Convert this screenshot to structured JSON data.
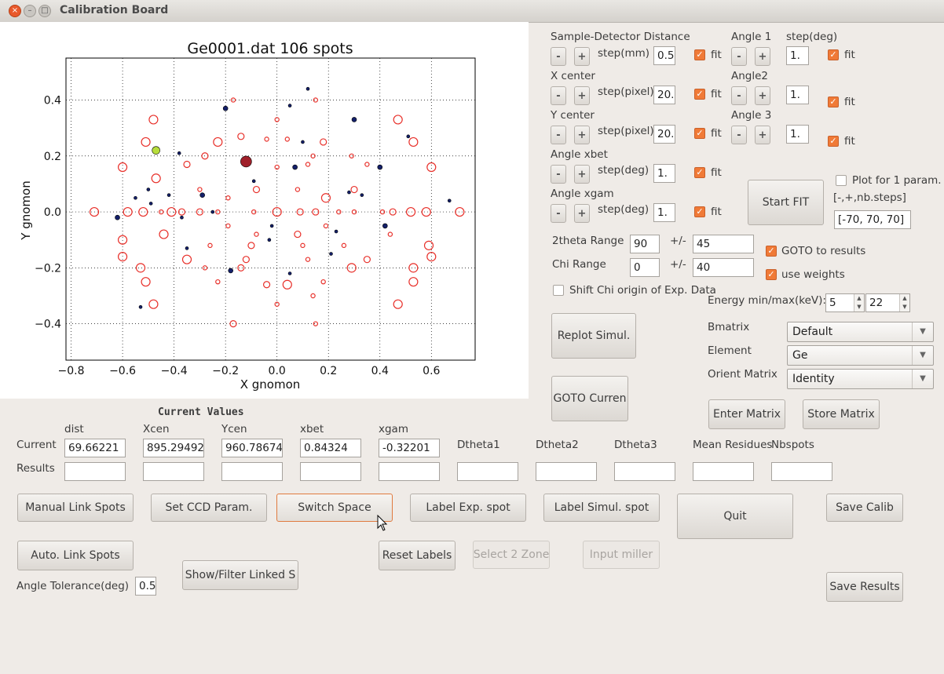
{
  "window": {
    "title": "Calibration Board"
  },
  "plot": {
    "title": "Ge0001.dat 106 spots",
    "xlabel": "X gnomon",
    "ylabel": "Y gnomon",
    "xticks": [
      "−0.8",
      "−0.6",
      "−0.4",
      "−0.2",
      "0.0",
      "0.2",
      "0.4",
      "0.6"
    ],
    "yticks": [
      "0.4",
      "0.2",
      "0.0",
      "−0.2",
      "−0.4"
    ]
  },
  "chart_data": {
    "type": "scatter",
    "title": "Ge0001.dat 106 spots",
    "xlabel": "X gnomon",
    "ylabel": "Y gnomon",
    "xlim": [
      -0.82,
      0.77
    ],
    "ylim": [
      -0.53,
      0.55
    ],
    "grid": true,
    "series": [
      {
        "marker": "open-circle",
        "color": "#e8302a",
        "points": [
          [
            -0.71,
            0.0
          ],
          [
            0.71,
            0.0
          ],
          [
            -0.48,
            0.33
          ],
          [
            0.47,
            0.33
          ],
          [
            -0.51,
            0.25
          ],
          [
            0.53,
            0.25
          ],
          [
            -0.48,
            -0.33
          ],
          [
            0.47,
            -0.33
          ],
          [
            -0.51,
            -0.25
          ],
          [
            0.53,
            -0.25
          ],
          [
            -0.17,
            0.4
          ],
          [
            0.15,
            0.4
          ],
          [
            -0.17,
            -0.4
          ],
          [
            0.15,
            -0.4
          ],
          [
            -0.23,
            0.25
          ],
          [
            0.18,
            0.25
          ],
          [
            -0.23,
            -0.25
          ],
          [
            0.18,
            -0.25
          ],
          [
            -0.28,
            0.2
          ],
          [
            0.29,
            0.2
          ],
          [
            -0.28,
            -0.2
          ],
          [
            0.29,
            -0.2
          ],
          [
            0.0,
            0.33
          ],
          [
            0.0,
            -0.33
          ],
          [
            -0.37,
            0.0
          ],
          [
            0.24,
            0.0
          ],
          [
            -0.23,
            0.0
          ],
          [
            0.15,
            0.0
          ],
          [
            0.0,
            0.0
          ],
          [
            -0.6,
            0.16
          ],
          [
            0.6,
            0.16
          ],
          [
            -0.6,
            -0.16
          ],
          [
            0.6,
            -0.16
          ],
          [
            -0.35,
            0.17
          ],
          [
            0.35,
            0.17
          ],
          [
            -0.35,
            -0.17
          ],
          [
            0.35,
            -0.17
          ],
          [
            -0.12,
            0.17
          ],
          [
            0.12,
            0.17
          ],
          [
            -0.12,
            -0.17
          ],
          [
            0.12,
            -0.17
          ],
          [
            -0.19,
            0.05
          ],
          [
            0.19,
            0.05
          ],
          [
            -0.19,
            -0.05
          ],
          [
            0.19,
            -0.05
          ],
          [
            -0.08,
            0.08
          ],
          [
            0.08,
            0.08
          ],
          [
            -0.08,
            -0.08
          ],
          [
            0.08,
            -0.08
          ],
          [
            -0.41,
            0.0
          ],
          [
            0.41,
            0.0
          ],
          [
            -0.58,
            0.0
          ],
          [
            0.58,
            0.0
          ],
          [
            -0.45,
            0.0
          ],
          [
            0.45,
            0.0
          ],
          [
            -0.52,
            0.0
          ],
          [
            0.52,
            0.0
          ],
          [
            -0.3,
            0.0
          ],
          [
            0.3,
            0.0
          ],
          [
            -0.09,
            0.0
          ],
          [
            0.09,
            0.0
          ],
          [
            -0.53,
            -0.2
          ],
          [
            0.53,
            -0.2
          ],
          [
            -0.44,
            -0.08
          ],
          [
            0.44,
            -0.08
          ],
          [
            -0.3,
            0.08
          ],
          [
            0.3,
            0.08
          ],
          [
            -0.04,
            0.26
          ],
          [
            0.04,
            0.26
          ],
          [
            -0.04,
            -0.26
          ],
          [
            0.04,
            -0.26
          ],
          [
            -0.6,
            -0.1
          ],
          [
            0.59,
            -0.12
          ],
          [
            -0.26,
            -0.12
          ],
          [
            0.26,
            -0.12
          ],
          [
            -0.1,
            -0.12
          ],
          [
            0.1,
            -0.12
          ],
          [
            -0.47,
            0.12
          ],
          [
            -0.14,
            0.27
          ],
          [
            0.14,
            -0.3
          ],
          [
            0.0,
            0.16
          ],
          [
            -0.14,
            -0.2
          ],
          [
            0.14,
            0.2
          ]
        ]
      },
      {
        "marker": "filled-dot",
        "color": "#14206a",
        "points": [
          [
            -0.62,
            -0.02
          ],
          [
            0.67,
            0.04
          ],
          [
            -0.38,
            0.21
          ],
          [
            0.05,
            0.38
          ],
          [
            0.3,
            0.33
          ],
          [
            -0.49,
            0.03
          ],
          [
            -0.53,
            -0.34
          ],
          [
            -0.25,
            0.0
          ],
          [
            -0.18,
            -0.21
          ],
          [
            0.23,
            -0.07
          ],
          [
            -0.02,
            -0.05
          ],
          [
            -0.37,
            -0.02
          ],
          [
            0.07,
            0.16
          ],
          [
            0.05,
            -0.22
          ],
          [
            -0.5,
            0.08
          ],
          [
            0.1,
            0.25
          ],
          [
            -0.2,
            0.37
          ],
          [
            0.12,
            0.44
          ],
          [
            -0.09,
            0.11
          ],
          [
            0.28,
            0.07
          ],
          [
            0.4,
            0.16
          ],
          [
            0.51,
            0.27
          ],
          [
            -0.42,
            0.06
          ],
          [
            0.33,
            0.06
          ],
          [
            -0.29,
            0.06
          ],
          [
            0.21,
            -0.15
          ],
          [
            -0.55,
            0.05
          ],
          [
            -0.35,
            -0.13
          ],
          [
            0.42,
            -0.05
          ],
          [
            -0.03,
            -0.1
          ]
        ]
      },
      {
        "marker": "filled-dot",
        "color": "#a0202a",
        "size": "large",
        "points": [
          [
            -0.12,
            0.18
          ]
        ]
      },
      {
        "marker": "filled-dot",
        "color": "#b7dd3c",
        "size": "highlight",
        "points": [
          [
            -0.47,
            0.22
          ]
        ]
      }
    ]
  },
  "right_panel": {
    "sdd_label": "Sample-Detector Distance",
    "angle1_label": "Angle 1",
    "step_deg_label": "step(deg)",
    "step_mm_label": "step(mm)",
    "sdd_step": "0.5",
    "angle1_step": "1.",
    "fit_label": "fit",
    "xcen_label": "X center",
    "angle2_label": "Angle2",
    "step_pixel_label": "step(pixel)",
    "xcen_step": "20.",
    "angle2_step": "1.",
    "ycen_label": "Y center",
    "angle3_label": "Angle 3",
    "ycen_step": "20.",
    "angle3_step": "1.",
    "xbet_label": "Angle xbet",
    "xbet_step": "1.",
    "xgam_label": "Angle xgam",
    "xgam_step": "1.",
    "minus": "-",
    "plus": "+",
    "plot1param_label": "Plot for 1 param.",
    "range_hint": "[-,+,nb.steps]",
    "range_value": "[-70, 70, 70]",
    "start_fit": "Start FIT",
    "theta_range_label": "2theta Range",
    "theta_center": "90",
    "pm": "+/-",
    "theta_delta": "45",
    "chi_range_label": "Chi Range",
    "chi_center": "0",
    "chi_delta": "40",
    "goto_results_label": "GOTO to results",
    "use_weights_label": "use weights",
    "shift_chi_label": "Shift Chi origin of Exp. Data",
    "energy_label": "Energy min/max(keV):",
    "energy_min": "5",
    "energy_max": "22",
    "replot_label": "Replot Simul.",
    "bmatrix_label": "Bmatrix",
    "bmatrix_value": "Default",
    "element_label": "Element",
    "element_value": "Ge",
    "orient_label": "Orient Matrix",
    "orient_value": "Identity",
    "goto_current_label": "GOTO Curren",
    "enter_matrix": "Enter Matrix",
    "store_matrix": "Store Matrix"
  },
  "values": {
    "header": "Current Values",
    "row_current": "Current",
    "row_results": "Results",
    "columns": [
      "dist",
      "Xcen",
      "Ycen",
      "xbet",
      "xgam",
      "Dtheta1",
      "Dtheta2",
      "Dtheta3",
      "Mean Residues",
      "Nbspots"
    ],
    "current": [
      "69.66221",
      "895.29492",
      "960.78674",
      "0.84324",
      "-0.32201",
      "",
      "",
      "",
      "",
      ""
    ]
  },
  "buttons": {
    "manual_link": "Manual Link Spots",
    "set_ccd": "Set CCD Param.",
    "switch_space": "Switch Space",
    "label_exp": "Label Exp. spot",
    "label_simul": "Label Simul. spot",
    "quit": "Quit",
    "save_calib": "Save Calib",
    "auto_link": "Auto. Link Spots",
    "reset_labels": "Reset Labels",
    "select_zone": "Select 2 Zone",
    "input_miller": "Input miller",
    "show_filter": "Show/Filter Linked S",
    "save_results": "Save Results",
    "angle_tol_label": "Angle Tolerance(deg)",
    "angle_tol_value": "0.5"
  }
}
